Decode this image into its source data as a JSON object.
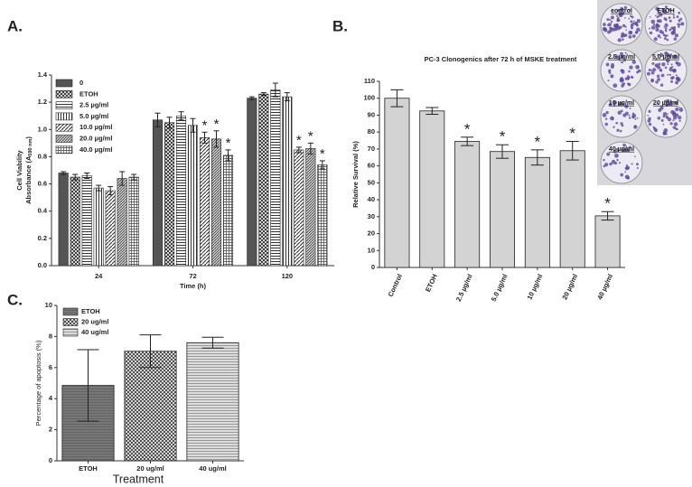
{
  "chart_data": [
    {
      "type": "bar",
      "panel": "A.",
      "ylabel": [
        "Cell Viability",
        "Absorbance (A",
        "590 nm",
        ")"
      ],
      "xlabel": "Time (h)",
      "categories": [
        "24",
        "72",
        "120"
      ],
      "series": [
        {
          "name": "0",
          "values": [
            0.68,
            1.07,
            1.23
          ],
          "errors": [
            0.01,
            0.05,
            0.01
          ],
          "significance": [
            null,
            null,
            null
          ]
        },
        {
          "name": "ETOH",
          "values": [
            0.65,
            1.05,
            1.26
          ],
          "errors": [
            0.02,
            0.04,
            0.01
          ],
          "significance": [
            null,
            null,
            null
          ]
        },
        {
          "name": "2.5 µg/ml",
          "values": [
            0.66,
            1.1,
            1.29
          ],
          "errors": [
            0.02,
            0.03,
            0.05
          ],
          "significance": [
            null,
            null,
            null
          ]
        },
        {
          "name": "5.0 µg/ml",
          "values": [
            0.57,
            1.03,
            1.24
          ],
          "errors": [
            0.02,
            0.05,
            0.03
          ],
          "significance": [
            null,
            null,
            null
          ]
        },
        {
          "name": "10.0 µg/ml",
          "values": [
            0.55,
            0.94,
            0.85
          ],
          "errors": [
            0.03,
            0.04,
            0.02
          ],
          "significance": [
            null,
            "*",
            "*"
          ]
        },
        {
          "name": "20.0 µg/ml",
          "values": [
            0.64,
            0.93,
            0.86
          ],
          "errors": [
            0.05,
            0.06,
            0.04
          ],
          "significance": [
            null,
            "*",
            "*"
          ]
        },
        {
          "name": "40.0 µg/ml",
          "values": [
            0.65,
            0.81,
            0.74
          ],
          "errors": [
            0.02,
            0.04,
            0.03
          ],
          "significance": [
            null,
            "*",
            "*"
          ]
        }
      ],
      "ylim": [
        0,
        1.4
      ],
      "yticks": [
        {
          "value": 0,
          "label": "0.0"
        },
        0.2,
        0.4,
        0.6,
        0.8,
        {
          "value": 1,
          "label": "1.0"
        },
        1.2,
        1.4
      ]
    },
    {
      "type": "bar",
      "panel": "B.",
      "title": "PC-3 Clonogenics after 72 h of MSKE treatment",
      "ylabel": "Relative Survival (%)",
      "categories": [
        "Control",
        "ETOH",
        "2.5 µg/ml",
        "5.0 µg/ml",
        "10 µg/ml",
        "20 µg/ml",
        "40 µg/ml"
      ],
      "values": [
        100,
        92.5,
        74.5,
        68.5,
        65,
        69,
        30.5
      ],
      "errors": [
        5,
        2,
        2.5,
        4,
        4.5,
        5.5,
        2.5
      ],
      "significance": [
        null,
        null,
        "*",
        "*",
        "*",
        "*",
        "*"
      ],
      "color": "#d3d3d3",
      "ylim": [
        0,
        110
      ],
      "yticks": [
        0,
        10,
        20,
        30,
        40,
        50,
        60,
        70,
        80,
        90,
        100,
        110
      ],
      "dish_labels": [
        "control",
        "ETOH",
        "2.5 µg/ml",
        "5.0 µg/ml",
        "10 µg/ml",
        "20 µg/ml",
        "40 µg/ml"
      ]
    },
    {
      "type": "bar",
      "panel": "C.",
      "ylabel": "Percentage of apoptosis (%)",
      "xlabel": "Treatment",
      "categories": [
        "ETOH",
        "20 ug/ml",
        "40 ug/ml"
      ],
      "values": [
        4.85,
        7.05,
        7.6
      ],
      "errors": [
        2.3,
        1.05,
        0.35
      ],
      "ylim": [
        0,
        10
      ],
      "yticks": [
        0,
        2,
        4,
        6,
        8,
        10
      ]
    }
  ]
}
